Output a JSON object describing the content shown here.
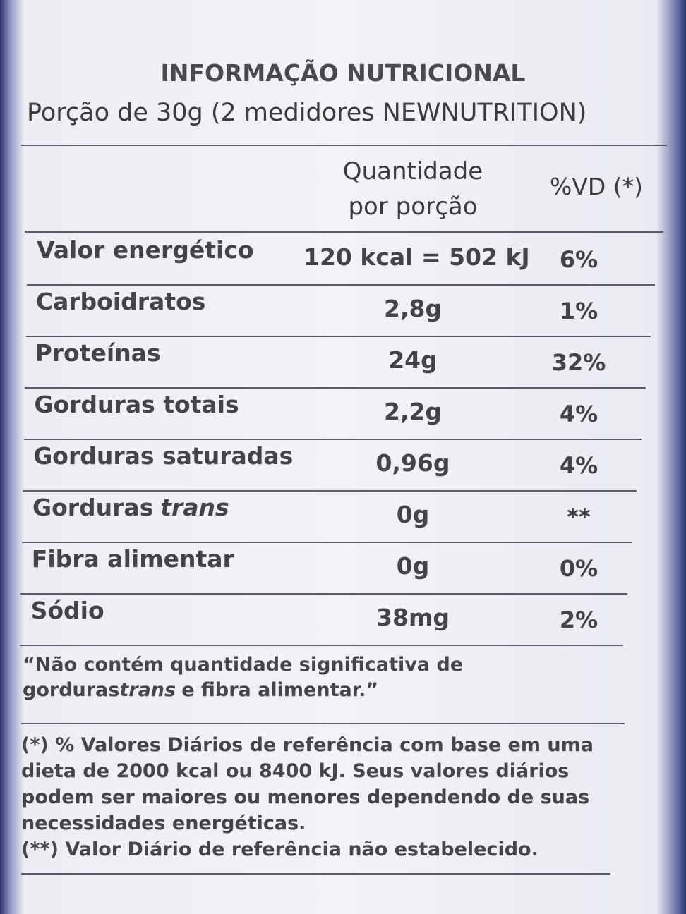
{
  "header": {
    "title": "INFORMAÇÃO NUTRICIONAL",
    "serving": "Porção de 30g (2 medidores NEWNUTRITION)"
  },
  "table": {
    "columns": {
      "amount": [
        "Quantidade",
        "por porção"
      ],
      "dv": "%VD (*)"
    },
    "rows": [
      {
        "label": [
          "Valor energético"
        ],
        "amount": "120 kcal = 502 kJ",
        "dv": "6%"
      },
      {
        "label": [
          "Carboidratos"
        ],
        "amount": "2,8g",
        "dv": "1%"
      },
      {
        "label": [
          "Proteínas"
        ],
        "amount": "24g",
        "dv": "32%"
      },
      {
        "label": [
          "Gorduras totais"
        ],
        "amount": "2,2g",
        "dv": "4%"
      },
      {
        "label": [
          "Gorduras saturadas"
        ],
        "amount": "0,96g",
        "dv": "4%"
      },
      {
        "label": [
          "Gorduras",
          "trans"
        ],
        "amount": "0g",
        "dv": "**"
      },
      {
        "label": [
          "Fibra alimentar"
        ],
        "amount": "0g",
        "dv": "0%"
      },
      {
        "label": [
          "Sódio"
        ],
        "amount": "38mg",
        "dv": "2%"
      }
    ]
  },
  "notes": {
    "not_significant": [
      "“Não contém quantidade significativa de gorduras",
      "trans",
      "e fibra alimentar.”"
    ],
    "reference": [
      "(*) % Valores Diários de referência com base em uma dieta de 2000 kcal ou 8400 kJ. Seus valores diários podem ser maiores ou menores dependendo de suas necessidades energéticas.",
      "(**) Valor Diário de referência não estabelecido."
    ]
  }
}
